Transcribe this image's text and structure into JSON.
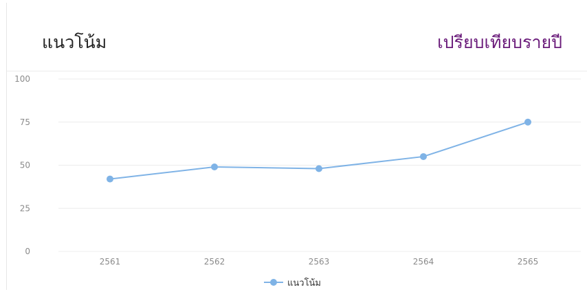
{
  "header": {
    "title": "แนวโน้ม",
    "compare_label": "เปรียบเทียบรายปี"
  },
  "colors": {
    "series": "#7fb3e6",
    "compare_link": "#6a1b7a",
    "grid": "#ececec"
  },
  "chart_data": {
    "type": "line",
    "categories": [
      "2561",
      "2562",
      "2563",
      "2564",
      "2565"
    ],
    "series": [
      {
        "name": "แนวโน้ม",
        "values": [
          42,
          49,
          48,
          55,
          75
        ]
      }
    ],
    "ylim": [
      0,
      100
    ],
    "yticks": [
      0,
      25,
      50,
      75,
      100
    ],
    "grid": true,
    "legend": "bottom-center",
    "title": "",
    "xlabel": "",
    "ylabel": ""
  }
}
